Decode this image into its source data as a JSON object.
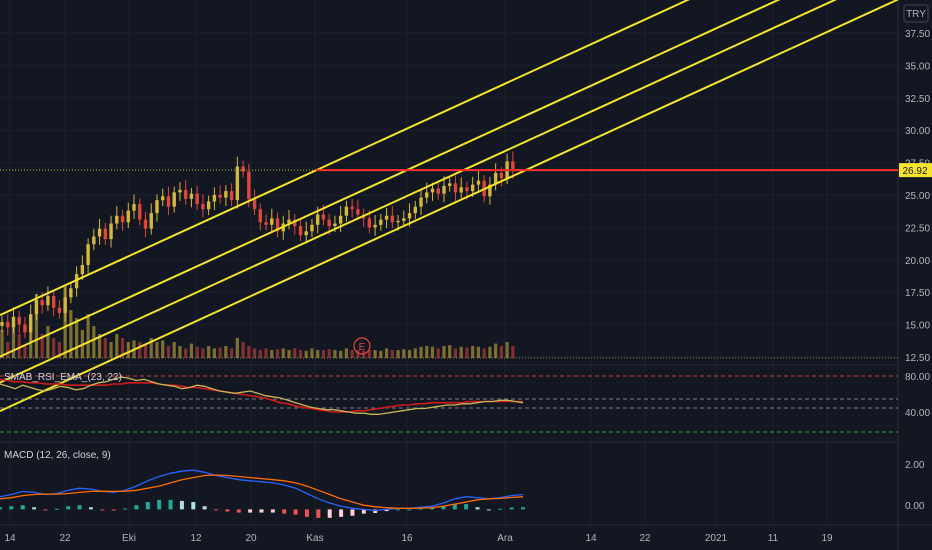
{
  "currency_label": "TRY",
  "last_price_label": "26.92",
  "earnings_marker": "E",
  "colors": {
    "background": "#131722",
    "up": "#d4b83c",
    "down": "#e0473c",
    "channel": "#f5e52a",
    "resistance": "#ff2d2d",
    "rsi_line": "#c9b558",
    "rsi_ema": "#d11a1a",
    "macd_line": "#2962ff",
    "signal_line": "#ff6d00",
    "level_80": "#d33a3a",
    "level_30": "#2ea043",
    "price_tag_bg": "#f5e52a"
  },
  "rsi_indicator": {
    "label": "SMAB_RSI_EMA_(23, 22)",
    "levels": [
      "80.00",
      "40.00"
    ]
  },
  "macd_indicator": {
    "label": "MACD (12, 26, close, 9)",
    "levels": [
      "2.00",
      "0.00"
    ]
  },
  "chart_data": {
    "type": "candlestick",
    "y_ticks": [
      "37.50",
      "35.00",
      "32.50",
      "30.00",
      "27.50",
      "25.00",
      "22.50",
      "20.00",
      "17.50",
      "15.00",
      "12.50"
    ],
    "x_ticks": [
      "14",
      "22",
      "Eki",
      "12",
      "20",
      "Kas",
      "16",
      "Ara",
      "14",
      "22",
      "2021",
      "11",
      "19"
    ],
    "ylim": [
      12.5,
      38.5
    ],
    "resistance_level": 26.92,
    "channel": {
      "lines": 4,
      "start_values_at_first_bar": [
        15.8,
        12.6,
        10.6,
        8.4
      ],
      "slope_per_bar": 0.203
    },
    "close_series": [
      15.2,
      14.8,
      15.6,
      15.0,
      14.4,
      15.8,
      16.9,
      16.5,
      17.2,
      16.3,
      15.9,
      17.1,
      17.8,
      18.9,
      19.6,
      21.2,
      21.8,
      22.4,
      21.6,
      22.8,
      23.4,
      22.9,
      23.8,
      24.3,
      23.1,
      22.4,
      23.6,
      24.6,
      24.9,
      24.1,
      25.2,
      25.4,
      24.7,
      25.1,
      24.3,
      23.9,
      24.5,
      25.0,
      24.8,
      25.3,
      24.6,
      27.2,
      26.8,
      24.7,
      23.9,
      22.9,
      22.7,
      23.2,
      22.2,
      22.8,
      23.1,
      22.6,
      21.9,
      22.2,
      22.7,
      23.5,
      23.1,
      22.6,
      22.8,
      23.4,
      24.1,
      23.9,
      23.5,
      23.2,
      22.5,
      22.7,
      23.1,
      23.4,
      22.9,
      23.0,
      23.2,
      23.6,
      24.1,
      24.8,
      25.2,
      25.5,
      25.1,
      25.7,
      25.9,
      25.2,
      25.6,
      25.3,
      25.8,
      26.1,
      24.9,
      25.8,
      26.7,
      26.3,
      27.6,
      26.9
    ],
    "rsi": {
      "range": [
        30,
        90
      ],
      "series_values": [
        78,
        76,
        74,
        77,
        75,
        73,
        72,
        74,
        76,
        75,
        73,
        74,
        77,
        79,
        80,
        82,
        84,
        83,
        81,
        82,
        80,
        78,
        77,
        76,
        74,
        75,
        77,
        76,
        74,
        72,
        71,
        70,
        71,
        72,
        70,
        68,
        67,
        66,
        64,
        62,
        60,
        58,
        57,
        56,
        56,
        55,
        54,
        53,
        53,
        52,
        52,
        53,
        54,
        55,
        56,
        57,
        57,
        58,
        59,
        60,
        60,
        61,
        61,
        62,
        63,
        63,
        64,
        64,
        63,
        62
      ],
      "ema_values": [
        82,
        81,
        80,
        80,
        79,
        79,
        78,
        78,
        78,
        77,
        77,
        77,
        77,
        77,
        77,
        78,
        78,
        79,
        79,
        79,
        79,
        78,
        77,
        77,
        76,
        75,
        75,
        74,
        73,
        72,
        71,
        70,
        69,
        68,
        67,
        66,
        64,
        62,
        61,
        59,
        58,
        57,
        56,
        55,
        54,
        54,
        54,
        55,
        55,
        56,
        57,
        58,
        59,
        60,
        60,
        61,
        61,
        62,
        62,
        62,
        62,
        62,
        63,
        63,
        63,
        63,
        63,
        63,
        63,
        63
      ]
    },
    "macd": {
      "range": [
        -0.5,
        2.8
      ],
      "macd_line": [
        0.6,
        0.7,
        0.85,
        0.8,
        0.7,
        0.75,
        0.9,
        1.0,
        0.95,
        0.85,
        0.8,
        0.9,
        1.1,
        1.35,
        1.55,
        1.7,
        1.8,
        1.85,
        1.75,
        1.6,
        1.5,
        1.4,
        1.35,
        1.3,
        1.25,
        1.15,
        1.0,
        0.75,
        0.5,
        0.3,
        0.15,
        0.05,
        0.0,
        -0.05,
        0.0,
        0.05,
        0.05,
        0.1,
        0.15,
        0.3,
        0.5,
        0.6,
        0.55,
        0.5,
        0.55,
        0.65,
        0.7
      ],
      "signal_line": [
        0.5,
        0.55,
        0.65,
        0.7,
        0.72,
        0.72,
        0.75,
        0.8,
        0.85,
        0.86,
        0.85,
        0.86,
        0.9,
        1.0,
        1.1,
        1.25,
        1.4,
        1.5,
        1.6,
        1.62,
        1.6,
        1.55,
        1.5,
        1.45,
        1.4,
        1.35,
        1.25,
        1.1,
        0.9,
        0.7,
        0.5,
        0.35,
        0.2,
        0.12,
        0.08,
        0.05,
        0.05,
        0.06,
        0.08,
        0.15,
        0.25,
        0.35,
        0.45,
        0.5,
        0.52,
        0.56,
        0.6
      ]
    },
    "volume_relative": [
      0.35,
      0.2,
      0.45,
      0.3,
      0.15,
      0.5,
      0.8,
      0.3,
      0.4,
      0.25,
      0.2,
      0.9,
      0.6,
      0.5,
      0.35,
      0.55,
      0.4,
      0.3,
      0.25,
      0.2,
      0.3,
      0.25,
      0.2,
      0.22,
      0.2,
      0.18,
      0.25,
      0.2,
      0.22,
      0.15,
      0.2,
      0.15,
      0.12,
      0.18,
      0.14,
      0.12,
      0.15,
      0.12,
      0.13,
      0.15,
      0.12,
      0.25,
      0.2,
      0.15,
      0.12,
      0.1,
      0.12,
      0.1,
      0.11,
      0.12,
      0.1,
      0.12,
      0.1,
      0.09,
      0.12,
      0.1,
      0.1,
      0.11,
      0.1,
      0.09,
      0.12,
      0.1,
      0.1,
      0.09,
      0.1,
      0.1,
      0.09,
      0.12,
      0.1,
      0.1,
      0.11,
      0.1,
      0.12,
      0.14,
      0.15,
      0.14,
      0.12,
      0.15,
      0.16,
      0.12,
      0.14,
      0.13,
      0.15,
      0.14,
      0.12,
      0.14,
      0.18,
      0.15,
      0.2,
      0.15
    ]
  }
}
